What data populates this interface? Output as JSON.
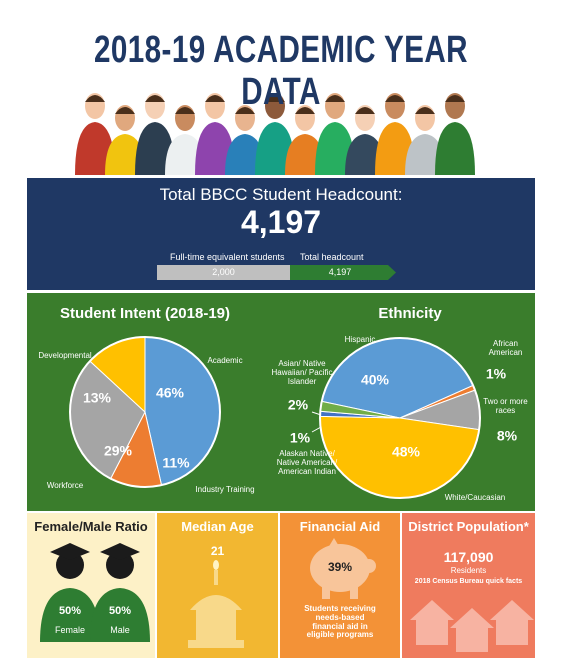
{
  "title": "2018-19 ACADEMIC YEAR DATA",
  "headcount": {
    "heading": "Total BBCC Student Headcount:",
    "total": "4,197",
    "fte_label": "Full-time equivalent students",
    "fte_value": "2,000",
    "total_label": "Total headcount",
    "total_value": "4,197"
  },
  "chart_data": [
    {
      "type": "pie",
      "title": "Student Intent (2018-19)",
      "categories": [
        "Academic",
        "Industry Training",
        "Workforce",
        "Developmental"
      ],
      "values": [
        46,
        11,
        29,
        13
      ],
      "value_labels": [
        "46%",
        "11%",
        "29%",
        "13%"
      ],
      "colors": [
        "#5b9bd5",
        "#ed7d31",
        "#a5a5a5",
        "#ffc000"
      ]
    },
    {
      "type": "pie",
      "title": "Ethnicity",
      "categories": [
        "Hispanic",
        "African American",
        "Two or more races",
        "White/Caucasian",
        "Alaskan Native/ Native American/ American Indian",
        "Asian/ Native Hawaiian/ Pacific Islander"
      ],
      "values": [
        40,
        1,
        8,
        48,
        1,
        2
      ],
      "value_labels": [
        "40%",
        "1%",
        "8%",
        "48%",
        "1%",
        "2%"
      ],
      "colors": [
        "#5b9bd5",
        "#ed7d31",
        "#a5a5a5",
        "#ffc000",
        "#4472c4",
        "#70ad47"
      ]
    }
  ],
  "stats": {
    "ratio": {
      "title": "Female/Male Ratio",
      "female_value": "50%",
      "female_label": "Female",
      "male_value": "50%",
      "male_label": "Male"
    },
    "age": {
      "title": "Median Age",
      "value": "21"
    },
    "aid": {
      "title": "Financial Aid",
      "value": "39%",
      "note": "Students receiving needs-based financial aid in eligible programs"
    },
    "population": {
      "title": "District Population*",
      "value": "117,090",
      "unit": "Residents",
      "source": "2018 Census Bureau quick facts"
    }
  }
}
